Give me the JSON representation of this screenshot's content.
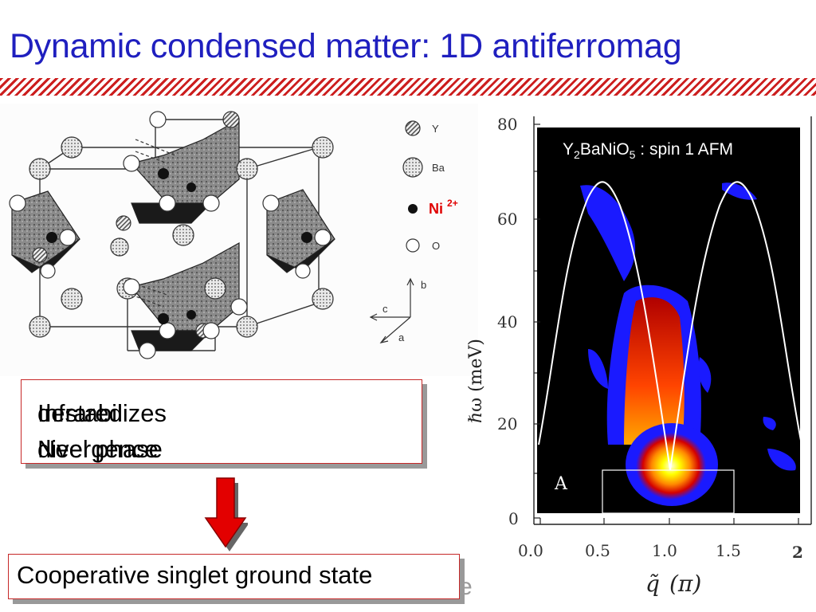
{
  "slide": {
    "title": "Dynamic condensed matter: 1D antiferromag",
    "box1": {
      "line1": "Infrared divergence",
      "line2": "destabilizes Neel phase"
    },
    "box2": {
      "text": "Cooperative singlet ground state"
    },
    "faded_text": "e"
  },
  "crystal_figure": {
    "legend": [
      {
        "label": "Y"
      },
      {
        "label": "Ba"
      },
      {
        "label": "O"
      }
    ],
    "ni_label": "Ni",
    "ni_charge": "2+",
    "axes_labels": {
      "c": "c",
      "b": "b",
      "a": "a"
    }
  },
  "spectrum_plot": {
    "compound_prefix": "Y",
    "compound_sub1": "2",
    "compound_mid": "BaNiO",
    "compound_sub2": "5",
    "compound_suffix": " : spin 1 AFM",
    "panel_label": "A",
    "ylabel": "ℏω (meV)",
    "xlabel_q": "q̃",
    "xlabel_unit": "(π)",
    "yticks": [
      "80",
      "60",
      "40",
      "20",
      "0"
    ],
    "xticks": [
      "0.0",
      "0.5",
      "1.0",
      "1.5"
    ],
    "extra_tick": "2",
    "colors": {
      "background": "#000000",
      "intensity_low": "#1a1aff",
      "intensity_high": "#ffff00",
      "dispersion": "#ffffff"
    }
  }
}
